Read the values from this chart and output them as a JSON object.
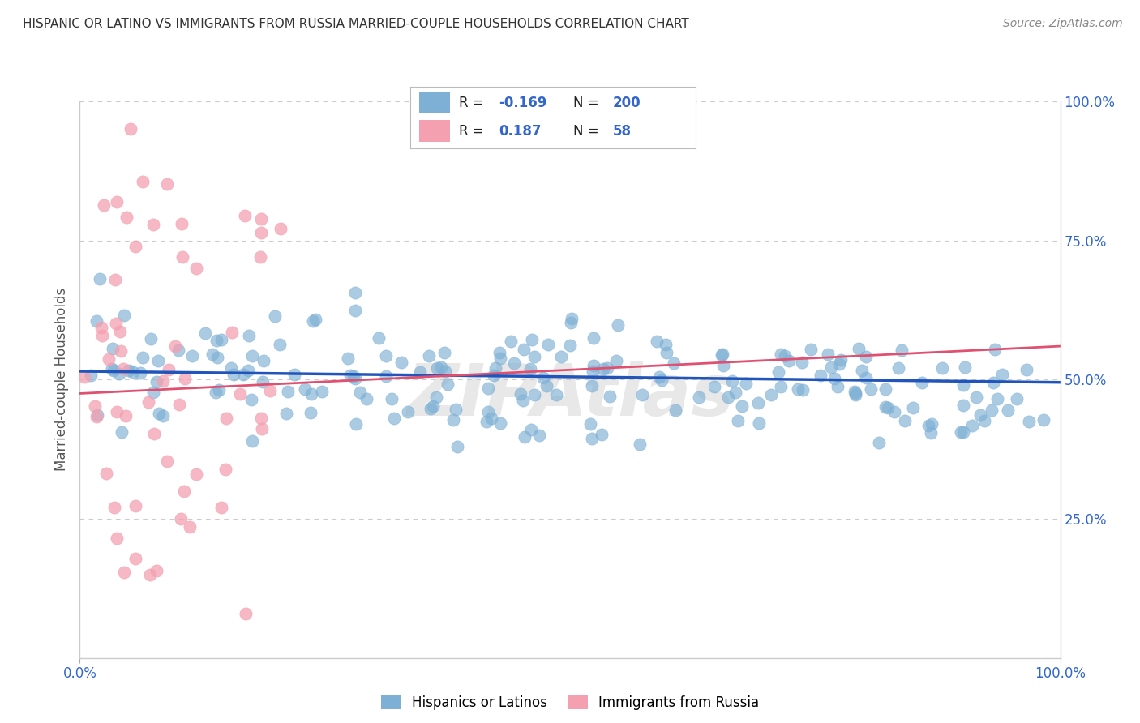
{
  "title": "HISPANIC OR LATINO VS IMMIGRANTS FROM RUSSIA MARRIED-COUPLE HOUSEHOLDS CORRELATION CHART",
  "source": "Source: ZipAtlas.com",
  "ylabel": "Married-couple Households",
  "watermark": "ZIPAtlas",
  "blue_color": "#7EB0D5",
  "pink_color": "#F4A0B0",
  "blue_line_color": "#2255BB",
  "pink_line_color": "#E05070",
  "R_blue": -0.169,
  "N_blue": 200,
  "R_pink": 0.187,
  "N_pink": 58,
  "background_color": "#FFFFFF",
  "grid_color": "#CCCCCC",
  "title_color": "#333333",
  "annotation_color": "#3366CC",
  "legend_label_color": "#000000"
}
